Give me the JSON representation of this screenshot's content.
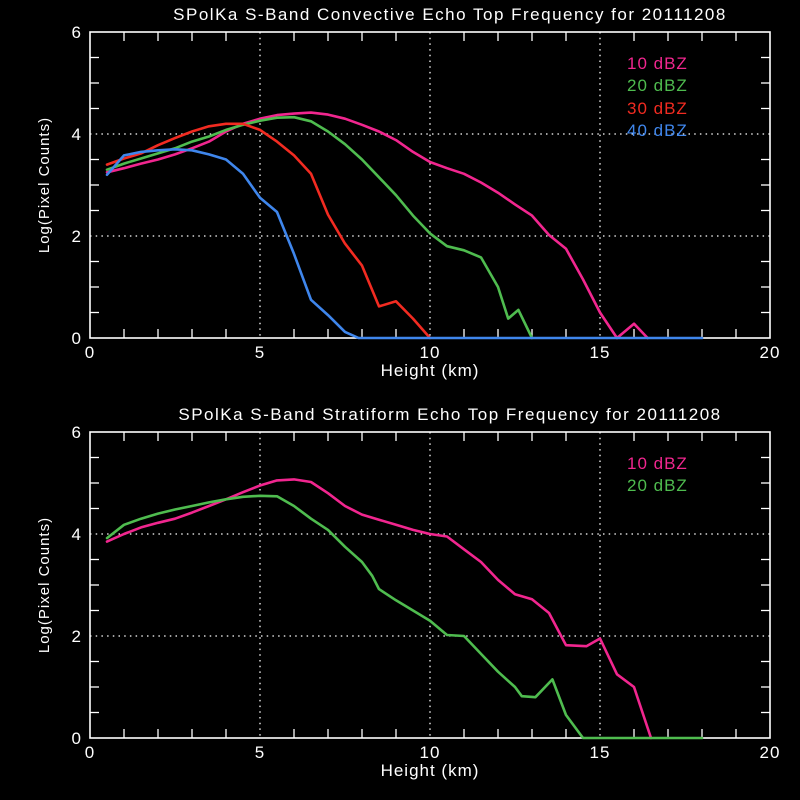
{
  "page": {
    "background": "#000000",
    "text_color": "#ffffff"
  },
  "chart_data": [
    {
      "type": "line",
      "title": "SPolKa S-Band Convective Echo Top Frequency for 20111208",
      "xlabel": "Height (km)",
      "ylabel": "Log(Pixel Counts)",
      "xlim": [
        0,
        20
      ],
      "ylim": [
        0,
        6
      ],
      "x_ticks": [
        0,
        5,
        10,
        15,
        20
      ],
      "y_ticks": [
        0,
        2,
        4,
        6
      ],
      "x_minor_step": 1,
      "y_minor_step": 0.5,
      "v_dotted_gridlines": [
        5,
        10,
        15
      ],
      "h_dotted_gridlines": [
        2,
        4
      ],
      "grid": "dotted",
      "legend_position": "upper right",
      "series": [
        {
          "name": "10 dBZ",
          "color": "#f1268f",
          "points": [
            [
              0.5,
              3.25
            ],
            [
              1,
              3.33
            ],
            [
              1.5,
              3.42
            ],
            [
              2,
              3.5
            ],
            [
              2.5,
              3.6
            ],
            [
              3,
              3.72
            ],
            [
              3.5,
              3.85
            ],
            [
              4,
              4.05
            ],
            [
              4.5,
              4.2
            ],
            [
              5,
              4.3
            ],
            [
              5.5,
              4.37
            ],
            [
              6,
              4.4
            ],
            [
              6.5,
              4.42
            ],
            [
              7,
              4.38
            ],
            [
              7.5,
              4.3
            ],
            [
              8,
              4.18
            ],
            [
              8.5,
              4.05
            ],
            [
              9,
              3.88
            ],
            [
              9.5,
              3.65
            ],
            [
              10,
              3.45
            ],
            [
              10.5,
              3.33
            ],
            [
              11,
              3.22
            ],
            [
              11.5,
              3.05
            ],
            [
              12,
              2.85
            ],
            [
              12.5,
              2.62
            ],
            [
              13,
              2.4
            ],
            [
              13.5,
              2.02
            ],
            [
              14,
              1.75
            ],
            [
              14.5,
              1.15
            ],
            [
              15,
              0.5
            ],
            [
              15.5,
              0
            ],
            [
              16,
              0.28
            ],
            [
              16.4,
              0
            ]
          ]
        },
        {
          "name": "20 dBZ",
          "color": "#4fbc4f",
          "points": [
            [
              0.5,
              3.3
            ],
            [
              1,
              3.42
            ],
            [
              1.5,
              3.52
            ],
            [
              2,
              3.62
            ],
            [
              2.5,
              3.72
            ],
            [
              3,
              3.85
            ],
            [
              3.5,
              3.95
            ],
            [
              4,
              4.08
            ],
            [
              4.5,
              4.18
            ],
            [
              5,
              4.26
            ],
            [
              5.5,
              4.32
            ],
            [
              6,
              4.33
            ],
            [
              6.5,
              4.25
            ],
            [
              7,
              4.05
            ],
            [
              7.5,
              3.8
            ],
            [
              8,
              3.5
            ],
            [
              8.5,
              3.15
            ],
            [
              9,
              2.8
            ],
            [
              9.5,
              2.4
            ],
            [
              10,
              2.05
            ],
            [
              10.5,
              1.8
            ],
            [
              11,
              1.72
            ],
            [
              11.5,
              1.58
            ],
            [
              12,
              1.0
            ],
            [
              12.3,
              0.38
            ],
            [
              12.6,
              0.55
            ],
            [
              13,
              0
            ]
          ]
        },
        {
          "name": "30 dBZ",
          "color": "#f22b21",
          "points": [
            [
              0.5,
              3.4
            ],
            [
              1,
              3.52
            ],
            [
              1.5,
              3.62
            ],
            [
              2,
              3.78
            ],
            [
              2.5,
              3.92
            ],
            [
              3,
              4.05
            ],
            [
              3.5,
              4.15
            ],
            [
              4,
              4.2
            ],
            [
              4.5,
              4.2
            ],
            [
              5,
              4.08
            ],
            [
              5.5,
              3.85
            ],
            [
              6,
              3.58
            ],
            [
              6.5,
              3.22
            ],
            [
              7,
              2.42
            ],
            [
              7.5,
              1.85
            ],
            [
              8,
              1.42
            ],
            [
              8.5,
              0.62
            ],
            [
              9,
              0.72
            ],
            [
              9.5,
              0.38
            ],
            [
              10,
              0
            ]
          ]
        },
        {
          "name": "40 dBZ",
          "color": "#3f86ec",
          "points": [
            [
              0.5,
              3.2
            ],
            [
              1,
              3.58
            ],
            [
              1.5,
              3.65
            ],
            [
              2,
              3.68
            ],
            [
              2.5,
              3.7
            ],
            [
              3,
              3.68
            ],
            [
              3.5,
              3.6
            ],
            [
              4,
              3.5
            ],
            [
              4.5,
              3.22
            ],
            [
              5,
              2.75
            ],
            [
              5.5,
              2.47
            ],
            [
              6,
              1.65
            ],
            [
              6.5,
              0.75
            ],
            [
              7,
              0.45
            ],
            [
              7.5,
              0.12
            ],
            [
              7.9,
              0
            ],
            [
              18,
              0
            ]
          ]
        }
      ]
    },
    {
      "type": "line",
      "title": "SPolKa S-Band Stratiform Echo Top Frequency for 20111208",
      "xlabel": "Height (km)",
      "ylabel": "Log(Pixel Counts)",
      "xlim": [
        0,
        20
      ],
      "ylim": [
        0,
        6
      ],
      "x_ticks": [
        0,
        5,
        10,
        15,
        20
      ],
      "y_ticks": [
        0,
        2,
        4,
        6
      ],
      "x_minor_step": 1,
      "y_minor_step": 0.5,
      "v_dotted_gridlines": [
        5,
        10,
        15
      ],
      "h_dotted_gridlines": [
        2,
        4
      ],
      "grid": "dotted",
      "legend_position": "upper right",
      "series": [
        {
          "name": "10 dBZ",
          "color": "#f1268f",
          "points": [
            [
              0.5,
              3.85
            ],
            [
              1,
              4.0
            ],
            [
              1.5,
              4.13
            ],
            [
              2,
              4.22
            ],
            [
              2.5,
              4.3
            ],
            [
              3,
              4.42
            ],
            [
              3.5,
              4.55
            ],
            [
              4,
              4.68
            ],
            [
              4.5,
              4.82
            ],
            [
              5,
              4.95
            ],
            [
              5.5,
              5.05
            ],
            [
              6,
              5.07
            ],
            [
              6.5,
              5.02
            ],
            [
              7,
              4.8
            ],
            [
              7.5,
              4.55
            ],
            [
              8,
              4.38
            ],
            [
              8.5,
              4.28
            ],
            [
              9,
              4.18
            ],
            [
              9.5,
              4.08
            ],
            [
              10,
              4.0
            ],
            [
              10.5,
              3.95
            ],
            [
              11,
              3.7
            ],
            [
              11.5,
              3.45
            ],
            [
              12,
              3.1
            ],
            [
              12.5,
              2.82
            ],
            [
              13,
              2.72
            ],
            [
              13.5,
              2.45
            ],
            [
              14,
              1.82
            ],
            [
              14.6,
              1.8
            ],
            [
              15,
              1.95
            ],
            [
              15.5,
              1.25
            ],
            [
              16,
              1.0
            ],
            [
              16.5,
              0
            ]
          ]
        },
        {
          "name": "20 dBZ",
          "color": "#4fbc4f",
          "points": [
            [
              0.5,
              3.92
            ],
            [
              1,
              4.18
            ],
            [
              1.5,
              4.3
            ],
            [
              2,
              4.4
            ],
            [
              2.5,
              4.48
            ],
            [
              3,
              4.55
            ],
            [
              3.5,
              4.62
            ],
            [
              4,
              4.68
            ],
            [
              4.5,
              4.73
            ],
            [
              5,
              4.75
            ],
            [
              5.5,
              4.74
            ],
            [
              6,
              4.55
            ],
            [
              6.5,
              4.3
            ],
            [
              7,
              4.08
            ],
            [
              7.5,
              3.75
            ],
            [
              8,
              3.45
            ],
            [
              8.3,
              3.18
            ],
            [
              8.5,
              2.92
            ],
            [
              9,
              2.7
            ],
            [
              9.5,
              2.5
            ],
            [
              10,
              2.3
            ],
            [
              10.5,
              2.02
            ],
            [
              11,
              2.0
            ],
            [
              11.5,
              1.65
            ],
            [
              12,
              1.3
            ],
            [
              12.5,
              1.0
            ],
            [
              12.7,
              0.82
            ],
            [
              13.1,
              0.8
            ],
            [
              13.6,
              1.15
            ],
            [
              14,
              0.45
            ],
            [
              14.5,
              0
            ],
            [
              18,
              0
            ]
          ]
        }
      ]
    }
  ]
}
